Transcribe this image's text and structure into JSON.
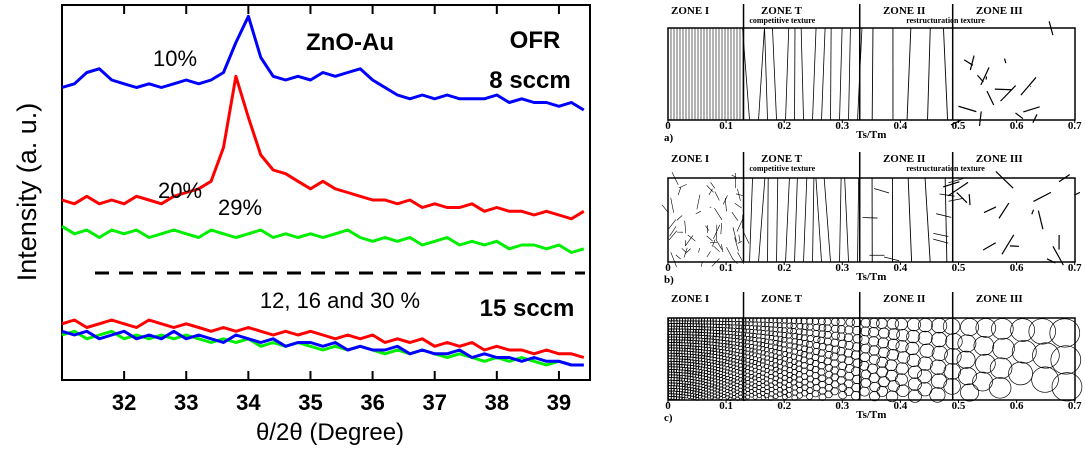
{
  "chart_data": {
    "type": "line",
    "xlabel": "θ/2θ  (Degree)",
    "ylabel": "Intensity (a. u.)",
    "annotations": [
      "10%",
      "20%",
      "29%",
      "ZnO-Au",
      "OFR",
      "8 sccm",
      "12, 16 and 30 %",
      "15 sccm"
    ],
    "xlim": [
      31,
      39.5
    ],
    "xticks": [
      32,
      33,
      34,
      35,
      36,
      37,
      38,
      39
    ],
    "ylim": [
      0,
      100
    ],
    "x": [
      31.0,
      31.2,
      31.4,
      31.6,
      31.8,
      32.0,
      32.2,
      32.4,
      32.6,
      32.8,
      33.0,
      33.2,
      33.4,
      33.6,
      33.8,
      34.0,
      34.2,
      34.4,
      34.6,
      34.8,
      35.0,
      35.2,
      35.4,
      35.6,
      35.8,
      36.0,
      36.2,
      36.4,
      36.6,
      36.8,
      37.0,
      37.2,
      37.4,
      37.6,
      37.8,
      38.0,
      38.2,
      38.4,
      38.6,
      38.8,
      39.0,
      39.2,
      39.4
    ],
    "series": [
      {
        "color": "#0000ff",
        "values": [
          78,
          79,
          82,
          83,
          80,
          79,
          78,
          79,
          78,
          79,
          80,
          79,
          80,
          82,
          90,
          97,
          86,
          81,
          80,
          81,
          80,
          82,
          81,
          82,
          83,
          80,
          78,
          76,
          75,
          76,
          75,
          76,
          75,
          75,
          75,
          76,
          74,
          75,
          74,
          74,
          73,
          74,
          72
        ]
      },
      {
        "color": "#ff0000",
        "values": [
          48,
          47,
          49,
          47,
          48,
          47,
          49,
          48,
          47,
          49,
          50,
          51,
          53,
          62,
          81,
          70,
          60,
          56,
          55,
          53,
          51,
          53,
          51,
          50,
          49,
          48,
          48,
          47,
          48,
          46,
          47,
          46,
          46,
          47,
          45,
          46,
          45,
          45,
          44,
          45,
          44,
          43,
          45
        ]
      },
      {
        "color": "#00ee00",
        "values": [
          41,
          39,
          40,
          38,
          40,
          39,
          40,
          38,
          39,
          40,
          39,
          38,
          40,
          39,
          38,
          39,
          40,
          38,
          39,
          38,
          39,
          38,
          39,
          40,
          38,
          37,
          38,
          37,
          38,
          36,
          37,
          38,
          36,
          37,
          36,
          37,
          35,
          36,
          36,
          35,
          36,
          34,
          35
        ]
      },
      {
        "color": "#ff0000",
        "values": [
          15,
          16,
          14,
          15,
          16,
          15,
          14,
          16,
          15,
          14,
          15,
          14,
          13,
          14,
          13,
          14,
          13,
          12,
          13,
          12,
          13,
          12,
          11,
          12,
          11,
          12,
          10,
          11,
          10,
          11,
          9,
          10,
          9,
          10,
          8,
          9,
          8,
          8,
          7,
          8,
          7,
          7,
          6
        ]
      },
      {
        "color": "#00ee00",
        "values": [
          12,
          13,
          11,
          12,
          13,
          11,
          12,
          11,
          12,
          11,
          12,
          11,
          10,
          11,
          10,
          11,
          9,
          10,
          9,
          10,
          9,
          8,
          9,
          8,
          9,
          8,
          7,
          8,
          7,
          8,
          7,
          6,
          7,
          6,
          5,
          6,
          5,
          6,
          5,
          4,
          5,
          4,
          4
        ]
      },
      {
        "color": "#0000ff",
        "values": [
          13,
          12,
          13,
          11,
          12,
          13,
          11,
          12,
          11,
          13,
          11,
          12,
          11,
          10,
          12,
          11,
          10,
          11,
          9,
          10,
          10,
          9,
          10,
          8,
          9,
          8,
          8,
          9,
          7,
          8,
          7,
          7,
          8,
          6,
          7,
          6,
          6,
          5,
          6,
          5,
          5,
          4,
          4
        ]
      }
    ]
  },
  "zone_diagram": {
    "xlabel": "Ts/Tm",
    "xticks": [
      0,
      0.1,
      0.2,
      0.3,
      0.4,
      0.5,
      0.6,
      0.7
    ],
    "panels": [
      {
        "label": "a)",
        "zones": [
          "ZONE I",
          "ZONE T",
          "ZONE II",
          "ZONE III"
        ],
        "notes": [
          "competitive texture",
          "restructuration texture"
        ]
      },
      {
        "label": "b)",
        "zones": [
          "ZONE I",
          "ZONE T",
          "ZONE II",
          "ZONE III"
        ],
        "notes": [
          "competitive texture",
          "restructuration texture"
        ]
      },
      {
        "label": "c)",
        "zones": [
          "ZONE I",
          "ZONE T",
          "ZONE II",
          "ZONE III"
        ],
        "notes": []
      }
    ]
  }
}
